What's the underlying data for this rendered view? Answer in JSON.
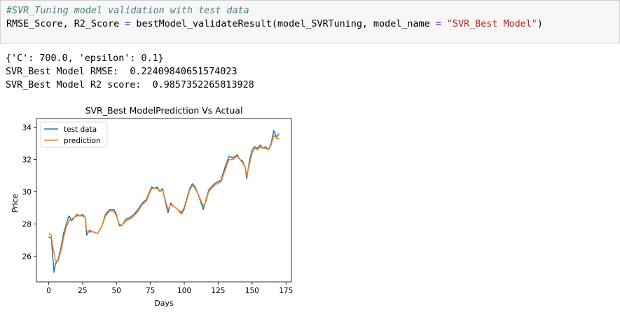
{
  "code": {
    "comment": "#SVR_Tuning model validation with test data",
    "line2_lhs": "RMSE_Score, R2_Score ",
    "line2_eq": "=",
    "line2_call": " bestModel_validateResult(model_SVRTuning, model_name ",
    "line2_eq2": "=",
    "line2_sp": " ",
    "line2_str": "\"SVR_Best Model\"",
    "line2_close": ")"
  },
  "output": {
    "params": "{'C': 700.0, 'epsilon': 0.1}",
    "rmse": "SVR_Best Model RMSE:  0.22409840651574023",
    "r2": "SVR_Best Model R2 score:  0.9857352265813928"
  },
  "colors": {
    "test": "#1f77b4",
    "pred": "#ff7f0e"
  },
  "chart_data": {
    "type": "line",
    "title": "SVR_Best ModelPrediction Vs Actual",
    "xlabel": "Days",
    "ylabel": "Price",
    "xlim": [
      -9,
      179
    ],
    "ylim": [
      24.4,
      34.55
    ],
    "xticks": [
      0,
      25,
      50,
      75,
      100,
      125,
      150,
      175
    ],
    "yticks": [
      26,
      28,
      30,
      32,
      34
    ],
    "legend": [
      "test data",
      "prediction"
    ],
    "series": [
      {
        "name": "test data",
        "knots": [
          [
            0,
            27.2
          ],
          [
            2,
            27.1
          ],
          [
            3,
            26.0
          ],
          [
            4,
            25.0
          ],
          [
            5,
            25.5
          ],
          [
            7,
            25.8
          ],
          [
            9,
            26.5
          ],
          [
            11,
            27.4
          ],
          [
            13,
            28.0
          ],
          [
            15,
            28.5
          ],
          [
            17,
            28.2
          ],
          [
            19,
            28.4
          ],
          [
            21,
            28.6
          ],
          [
            23,
            28.5
          ],
          [
            25,
            28.6
          ],
          [
            27,
            28.4
          ],
          [
            28,
            27.3
          ],
          [
            30,
            27.6
          ],
          [
            33,
            27.5
          ],
          [
            36,
            27.4
          ],
          [
            39,
            27.8
          ],
          [
            42,
            28.6
          ],
          [
            45,
            28.9
          ],
          [
            48,
            28.9
          ],
          [
            50,
            28.6
          ],
          [
            52,
            27.9
          ],
          [
            54,
            27.9
          ],
          [
            57,
            28.3
          ],
          [
            60,
            28.4
          ],
          [
            63,
            28.6
          ],
          [
            66,
            28.9
          ],
          [
            69,
            29.3
          ],
          [
            72,
            29.5
          ],
          [
            74,
            29.9
          ],
          [
            76,
            30.3
          ],
          [
            78,
            30.2
          ],
          [
            80,
            30.3
          ],
          [
            82,
            30.0
          ],
          [
            84,
            30.2
          ],
          [
            86,
            29.4
          ],
          [
            88,
            28.7
          ],
          [
            90,
            29.3
          ],
          [
            92,
            29.1
          ],
          [
            95,
            28.9
          ],
          [
            98,
            28.7
          ],
          [
            100,
            29.0
          ],
          [
            102,
            29.6
          ],
          [
            104,
            30.2
          ],
          [
            106,
            30.5
          ],
          [
            108,
            30.3
          ],
          [
            110,
            29.9
          ],
          [
            112,
            29.4
          ],
          [
            114,
            28.9
          ],
          [
            116,
            29.5
          ],
          [
            118,
            30.1
          ],
          [
            121,
            30.4
          ],
          [
            124,
            30.6
          ],
          [
            127,
            30.7
          ],
          [
            130,
            31.5
          ],
          [
            133,
            32.2
          ],
          [
            136,
            32.1
          ],
          [
            139,
            32.3
          ],
          [
            141,
            32.0
          ],
          [
            143,
            31.9
          ],
          [
            145,
            31.5
          ],
          [
            146,
            30.8
          ],
          [
            148,
            31.9
          ],
          [
            150,
            32.6
          ],
          [
            152,
            32.8
          ],
          [
            154,
            32.7
          ],
          [
            156,
            32.9
          ],
          [
            158,
            32.7
          ],
          [
            160,
            32.8
          ],
          [
            162,
            32.6
          ],
          [
            164,
            33.0
          ],
          [
            166,
            33.8
          ],
          [
            168,
            33.4
          ],
          [
            170,
            33.6
          ]
        ]
      },
      {
        "name": "prediction",
        "knots": [
          [
            0,
            27.4
          ],
          [
            2,
            27.3
          ],
          [
            3,
            26.6
          ],
          [
            4,
            26.2
          ],
          [
            5,
            25.7
          ],
          [
            7,
            25.7
          ],
          [
            9,
            26.3
          ],
          [
            11,
            27.1
          ],
          [
            13,
            27.8
          ],
          [
            15,
            28.2
          ],
          [
            17,
            28.3
          ],
          [
            19,
            28.4
          ],
          [
            21,
            28.5
          ],
          [
            23,
            28.5
          ],
          [
            25,
            28.5
          ],
          [
            27,
            28.4
          ],
          [
            28,
            27.6
          ],
          [
            30,
            27.5
          ],
          [
            33,
            27.5
          ],
          [
            36,
            27.4
          ],
          [
            39,
            27.8
          ],
          [
            42,
            28.5
          ],
          [
            45,
            28.8
          ],
          [
            48,
            28.8
          ],
          [
            50,
            28.5
          ],
          [
            52,
            28.0
          ],
          [
            54,
            27.9
          ],
          [
            57,
            28.2
          ],
          [
            60,
            28.3
          ],
          [
            63,
            28.5
          ],
          [
            66,
            28.8
          ],
          [
            69,
            29.2
          ],
          [
            72,
            29.4
          ],
          [
            74,
            29.8
          ],
          [
            76,
            30.2
          ],
          [
            78,
            30.2
          ],
          [
            80,
            30.2
          ],
          [
            82,
            30.0
          ],
          [
            84,
            30.1
          ],
          [
            86,
            29.5
          ],
          [
            88,
            28.9
          ],
          [
            90,
            29.2
          ],
          [
            92,
            29.1
          ],
          [
            95,
            28.9
          ],
          [
            98,
            28.6
          ],
          [
            100,
            28.9
          ],
          [
            102,
            29.5
          ],
          [
            104,
            30.1
          ],
          [
            106,
            30.4
          ],
          [
            108,
            30.2
          ],
          [
            110,
            29.9
          ],
          [
            112,
            29.5
          ],
          [
            114,
            29.1
          ],
          [
            116,
            29.4
          ],
          [
            118,
            30.0
          ],
          [
            121,
            30.3
          ],
          [
            124,
            30.5
          ],
          [
            127,
            30.6
          ],
          [
            130,
            31.3
          ],
          [
            133,
            32.0
          ],
          [
            136,
            32.0
          ],
          [
            139,
            32.2
          ],
          [
            141,
            32.0
          ],
          [
            143,
            31.8
          ],
          [
            145,
            31.5
          ],
          [
            146,
            31.0
          ],
          [
            148,
            31.7
          ],
          [
            150,
            32.4
          ],
          [
            152,
            32.7
          ],
          [
            154,
            32.6
          ],
          [
            156,
            32.8
          ],
          [
            158,
            32.7
          ],
          [
            160,
            32.7
          ],
          [
            162,
            32.6
          ],
          [
            164,
            32.9
          ],
          [
            166,
            33.5
          ],
          [
            168,
            33.3
          ],
          [
            170,
            33.3
          ]
        ]
      }
    ]
  }
}
